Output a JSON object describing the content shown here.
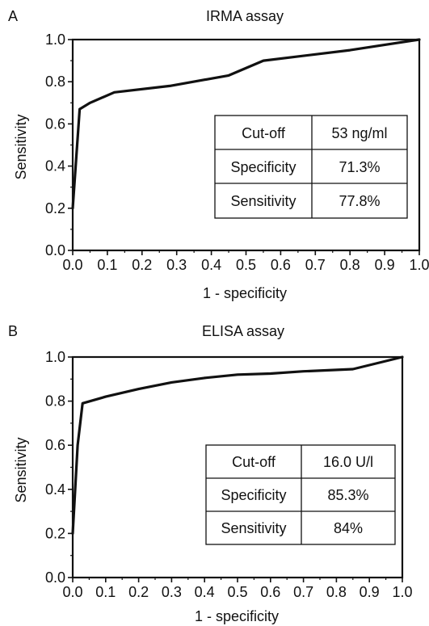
{
  "chart_data": [
    {
      "type": "line",
      "panel_label": "A",
      "title": "IRMA assay",
      "xlabel": "1 - specificity",
      "ylabel": "Sensitivity",
      "xlim": [
        0,
        1
      ],
      "ylim": [
        0,
        1
      ],
      "x_ticks": [
        "0.0",
        "0.1",
        "0.2",
        "0.3",
        "0.4",
        "0.5",
        "0.6",
        "0.7",
        "0.8",
        "0.9",
        "1.0"
      ],
      "y_ticks": [
        "0.0",
        "0.2",
        "0.4",
        "0.6",
        "0.8",
        "1.0"
      ],
      "grid": false,
      "legend": "none",
      "series": [
        {
          "x": [
            0.0,
            0.02,
            0.05,
            0.12,
            0.28,
            0.45,
            0.55,
            0.7,
            0.8,
            0.88,
            1.0
          ],
          "y": [
            0.2,
            0.67,
            0.7,
            0.75,
            0.78,
            0.83,
            0.9,
            0.93,
            0.95,
            0.97,
            1.0
          ]
        }
      ],
      "table": [
        [
          "Cut-off",
          "53 ng/ml"
        ],
        [
          "Specificity",
          "71.3%"
        ],
        [
          "Sensitivity",
          "77.8%"
        ]
      ]
    },
    {
      "type": "line",
      "panel_label": "B",
      "title": "ELISA assay",
      "xlabel": "1 - specificity",
      "ylabel": "Sensitivity",
      "xlim": [
        0,
        1
      ],
      "ylim": [
        0,
        1
      ],
      "x_ticks": [
        "0.0",
        "0.1",
        "0.2",
        "0.3",
        "0.4",
        "0.5",
        "0.6",
        "0.7",
        "0.8",
        "0.9",
        "1.0"
      ],
      "y_ticks": [
        "0.0",
        "0.2",
        "0.4",
        "0.6",
        "0.8",
        "1.0"
      ],
      "grid": false,
      "legend": "none",
      "series": [
        {
          "x": [
            0.0,
            0.015,
            0.03,
            0.1,
            0.2,
            0.3,
            0.4,
            0.5,
            0.6,
            0.7,
            0.85,
            1.0
          ],
          "y": [
            0.2,
            0.6,
            0.79,
            0.82,
            0.855,
            0.885,
            0.905,
            0.92,
            0.925,
            0.935,
            0.945,
            1.0
          ]
        }
      ],
      "table": [
        [
          "Cut-off",
          "16.0 U/l"
        ],
        [
          "Specificity",
          "85.3%"
        ],
        [
          "Sensitivity",
          "84%"
        ]
      ]
    }
  ]
}
